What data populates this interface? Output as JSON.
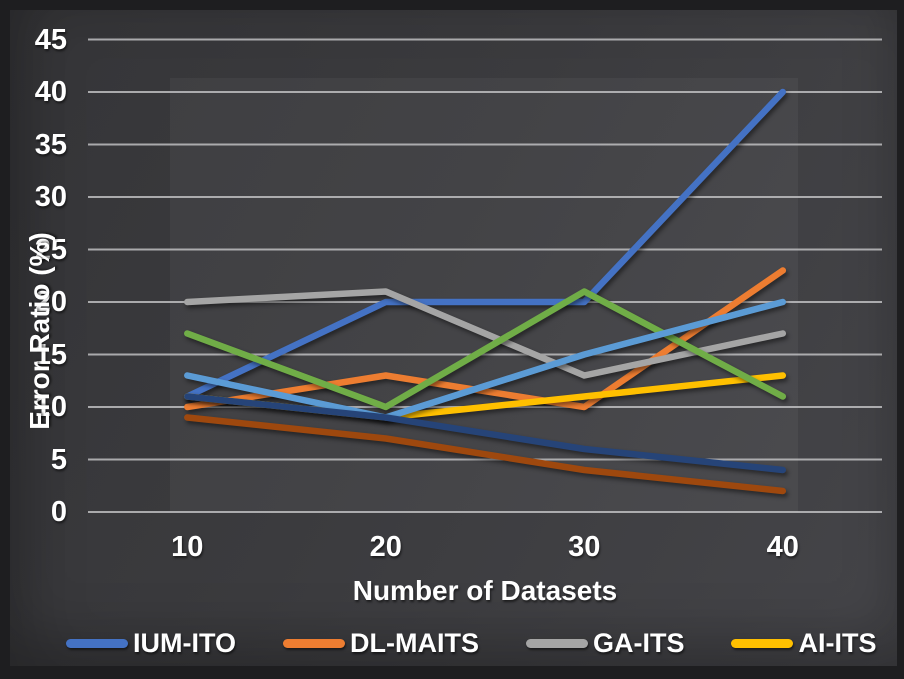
{
  "chart_data": {
    "type": "line",
    "title": "",
    "xlabel": "Number of Datasets",
    "ylabel": "Error Ratio (%)",
    "categories": [
      "10",
      "20",
      "30",
      "40"
    ],
    "y_ticks": [
      0,
      5,
      10,
      15,
      20,
      25,
      30,
      35,
      40,
      45
    ],
    "ylim": [
      0,
      45
    ],
    "grid": true,
    "legend_position": "bottom",
    "gridline_color": "#c7c7c9",
    "series": [
      {
        "label": "IUM-ITO",
        "color": "#4472C4",
        "values": [
          11,
          20,
          20,
          40
        ],
        "in_legend": true
      },
      {
        "label": "DL-MAITS",
        "color": "#ED7D31",
        "values": [
          10,
          13,
          10,
          23
        ],
        "in_legend": true
      },
      {
        "label": "GA-ITS",
        "color": "#A5A5A5",
        "values": [
          20,
          21,
          13,
          17
        ],
        "in_legend": true
      },
      {
        "label": "AI-ITS",
        "color": "#FFC000",
        "values": [
          11,
          9,
          11,
          13
        ],
        "in_legend": true
      },
      {
        "label": "",
        "color": "#70AD47",
        "values": [
          17,
          10,
          21,
          11
        ],
        "in_legend": false
      },
      {
        "label": "",
        "color": "#5B9BD5",
        "values": [
          13,
          9,
          15,
          20
        ],
        "in_legend": false
      },
      {
        "label": "",
        "color": "#264478",
        "values": [
          11,
          9,
          6,
          4
        ],
        "in_legend": false
      },
      {
        "label": "",
        "color": "#9E480E",
        "values": [
          9,
          7,
          4,
          2
        ],
        "in_legend": false
      }
    ]
  },
  "legend": {
    "items": [
      {
        "label": "IUM-ITO",
        "color": "#4472C4"
      },
      {
        "label": "DL-MAITS",
        "color": "#ED7D31"
      },
      {
        "label": "GA-ITS",
        "color": "#A5A5A5"
      },
      {
        "label": "AI-ITS",
        "color": "#FFC000"
      }
    ]
  }
}
